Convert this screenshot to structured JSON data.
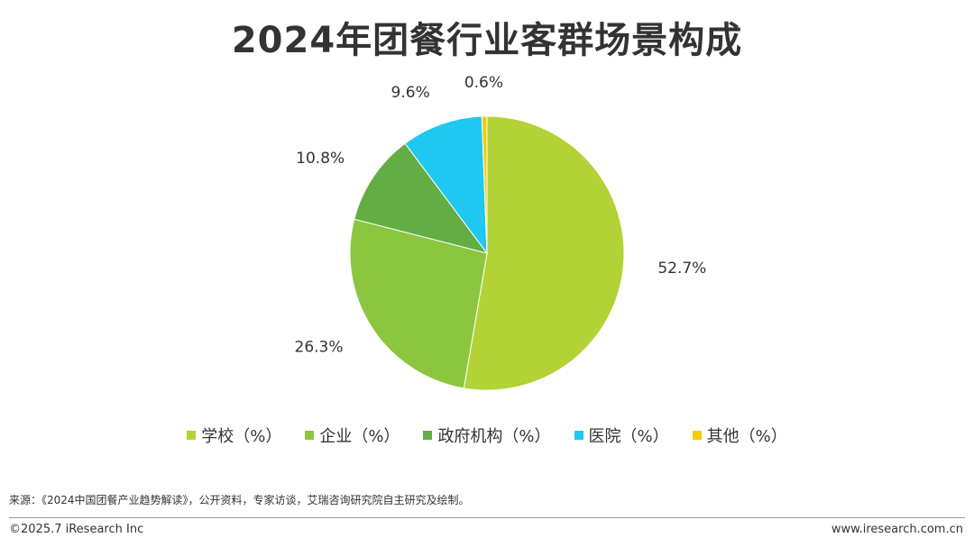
{
  "title": "2024年团餐行业客群场景构成",
  "chart_data": {
    "type": "pie",
    "title": "2024年团餐行业客群场景构成",
    "start_angle_deg": 0,
    "direction": "clockwise",
    "legend_position": "bottom",
    "slices": [
      {
        "name": "学校（%）",
        "value": 52.7,
        "label": "52.7%",
        "color": "#B2D235"
      },
      {
        "name": "企业（%）",
        "value": 26.3,
        "label": "26.3%",
        "color": "#8CC63F"
      },
      {
        "name": "政府机构（%）",
        "value": 10.8,
        "label": "10.8%",
        "color": "#62AE45"
      },
      {
        "name": "医院（%）",
        "value": 9.6,
        "label": "9.6%",
        "color": "#1FC8F0"
      },
      {
        "name": "其他（%）",
        "value": 0.6,
        "label": "0.6%",
        "color": "#F5CC0A"
      }
    ]
  },
  "source": "来源：《2024中国团餐产业趋势解读》，公开资料，专家访谈，艾瑞咨询研究院自主研究及绘制。",
  "footer": {
    "copyright": "©2025.7 iResearch Inc",
    "website": "www.iresearch.com.cn"
  }
}
